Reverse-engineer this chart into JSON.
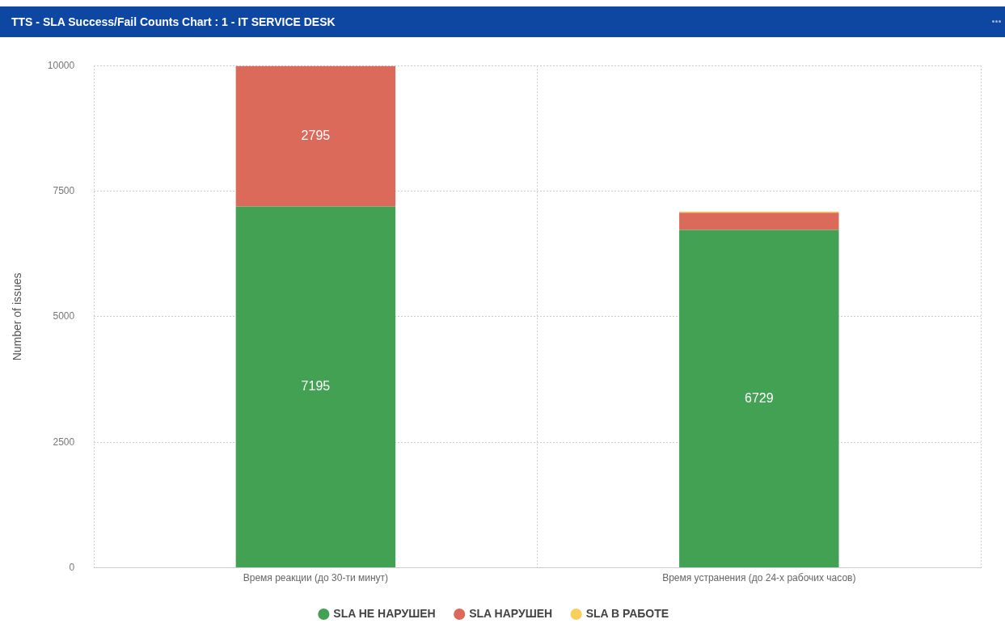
{
  "chart_data": {
    "type": "bar",
    "title": "TTS - SLA Success/Fail Counts Chart : 1 - IT SERVICE DESK",
    "ylabel": "Number of issues",
    "categories": [
      "Время реакции (до 30-ти минут)",
      "Время устранения (до 24-х рабочих часов)"
    ],
    "series": [
      {
        "name": "SLA НЕ НАРУШЕН",
        "color": "#43a154",
        "values": [
          7195,
          6729
        ],
        "value_labels": [
          "7195",
          "6729"
        ]
      },
      {
        "name": "SLA НАРУШЕН",
        "color": "#dc6a5b",
        "values": [
          2795,
          340
        ],
        "value_labels": [
          "2795",
          null
        ]
      },
      {
        "name": "SLA В РАБОТЕ",
        "color": "#f7cf5a",
        "values": [
          null,
          25
        ]
      }
    ],
    "stacked": true,
    "ylim": [
      0,
      10000
    ],
    "yticks": [
      0,
      2500,
      5000,
      7500,
      10000
    ],
    "grid": true,
    "legend": "bottom",
    "line_style": "dotted"
  }
}
